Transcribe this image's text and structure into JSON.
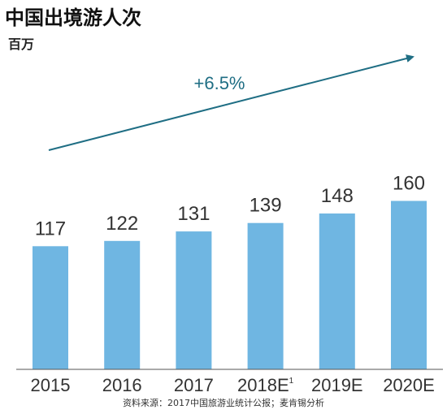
{
  "chart_data": {
    "type": "bar",
    "title": "中国出境游人次",
    "ylabel": "百万",
    "categories": [
      "2015",
      "2016",
      "2017",
      "2018E",
      "2019E",
      "2020E"
    ],
    "category_superscripts": [
      "",
      "",
      "",
      "1",
      "",
      ""
    ],
    "values": [
      117,
      122,
      131,
      139,
      148,
      160
    ],
    "ylim": [
      0,
      180
    ],
    "grid": false,
    "annotation": "+6.5%",
    "source": "资料来源：2017中国旅游业统计公报；麦肯锡分析"
  },
  "colors": {
    "bar": "#6fb6e2",
    "trend": "#1f6e84",
    "axis": "#555555"
  }
}
